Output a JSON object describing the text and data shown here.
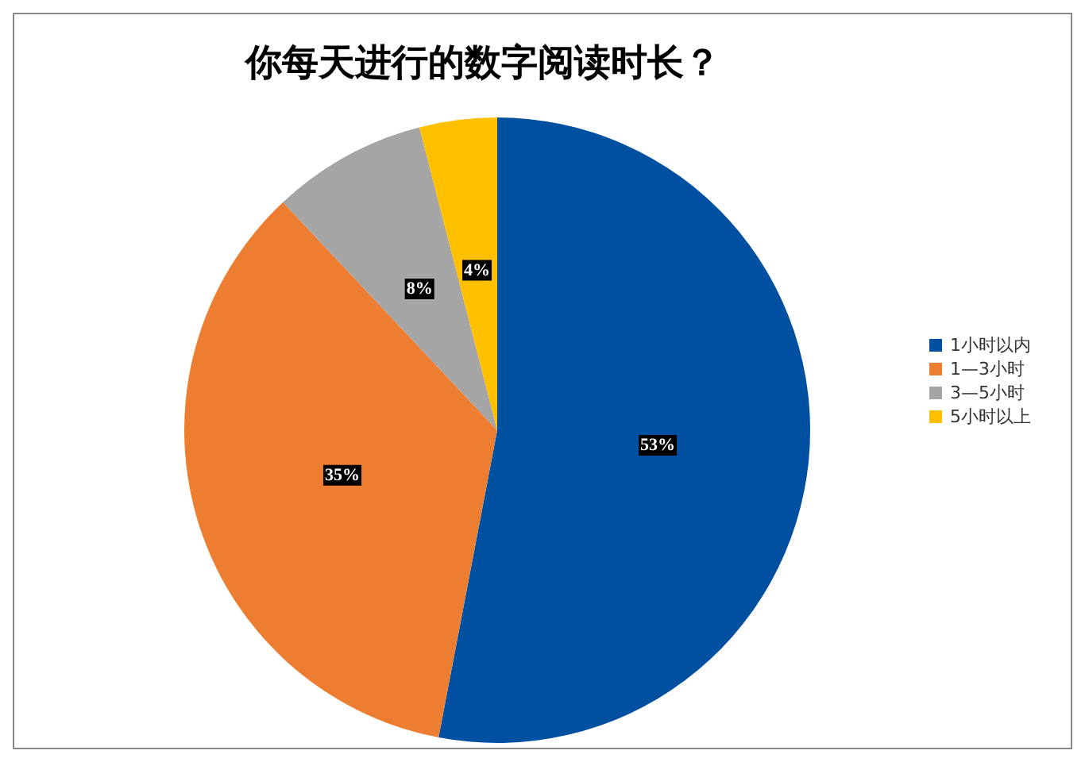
{
  "chart_data": {
    "type": "pie",
    "title": "你每天进行的数字阅读时长？",
    "categories": [
      "1小时以内",
      "1—3小时",
      "3—5小时",
      "5小时以上"
    ],
    "values": [
      53,
      35,
      8,
      4
    ],
    "value_labels": [
      "53%",
      "35%",
      "8%",
      "4%"
    ],
    "colors": [
      "#0050a2",
      "#ed7d31",
      "#a5a5a5",
      "#ffc000"
    ],
    "legend": "right"
  }
}
